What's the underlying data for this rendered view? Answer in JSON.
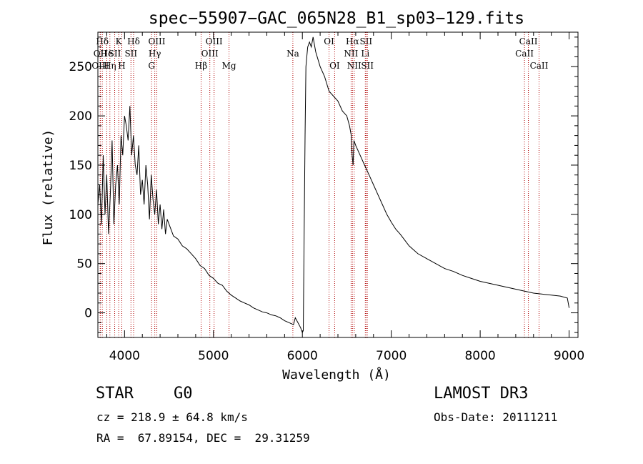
{
  "chart_data": {
    "type": "line",
    "title": "spec−55907−GAC_065N28_B1_sp03−129.fits",
    "xlabel": "Wavelength (Å)",
    "ylabel": "Flux (relative)",
    "xlim": [
      3700,
      9100
    ],
    "ylim": [
      -25,
      285
    ],
    "xticks": [
      4000,
      5000,
      6000,
      7000,
      8000,
      9000
    ],
    "yticks": [
      0,
      50,
      100,
      150,
      200,
      250
    ],
    "series": [
      {
        "name": "flux",
        "x": [
          3700,
          3720,
          3740,
          3760,
          3780,
          3800,
          3820,
          3840,
          3860,
          3880,
          3900,
          3920,
          3940,
          3960,
          3980,
          4000,
          4020,
          4040,
          4060,
          4080,
          4100,
          4120,
          4140,
          4160,
          4180,
          4200,
          4220,
          4240,
          4260,
          4280,
          4300,
          4320,
          4340,
          4360,
          4380,
          4400,
          4420,
          4440,
          4460,
          4480,
          4500,
          4550,
          4600,
          4650,
          4700,
          4750,
          4800,
          4850,
          4900,
          4950,
          5000,
          5050,
          5100,
          5150,
          5200,
          5250,
          5300,
          5350,
          5400,
          5450,
          5500,
          5550,
          5600,
          5650,
          5700,
          5750,
          5800,
          5850,
          5900,
          5920,
          5950,
          5980,
          6000,
          6010,
          6020,
          6030,
          6040,
          6050,
          6060,
          6080,
          6100,
          6120,
          6150,
          6200,
          6250,
          6300,
          6350,
          6400,
          6450,
          6500,
          6530,
          6550,
          6560,
          6570,
          6580,
          6600,
          6650,
          6700,
          6750,
          6800,
          6850,
          6900,
          6950,
          7000,
          7050,
          7100,
          7150,
          7200,
          7300,
          7400,
          7500,
          7600,
          7700,
          7800,
          7900,
          8000,
          8100,
          8200,
          8300,
          8400,
          8500,
          8600,
          8700,
          8800,
          8900,
          8980,
          9000
        ],
        "values": [
          110,
          130,
          90,
          160,
          100,
          140,
          80,
          120,
          175,
          90,
          130,
          150,
          110,
          180,
          160,
          200,
          190,
          175,
          210,
          160,
          180,
          150,
          140,
          170,
          120,
          135,
          110,
          150,
          130,
          95,
          140,
          115,
          100,
          125,
          90,
          110,
          85,
          105,
          80,
          95,
          90,
          78,
          75,
          68,
          65,
          60,
          55,
          48,
          45,
          38,
          35,
          30,
          28,
          22,
          18,
          15,
          12,
          10,
          8,
          5,
          3,
          1,
          0,
          -2,
          -3,
          -5,
          -8,
          -10,
          -12,
          -5,
          -10,
          -15,
          -20,
          -18,
          80,
          180,
          250,
          260,
          270,
          275,
          270,
          280,
          265,
          250,
          240,
          225,
          220,
          215,
          205,
          200,
          190,
          180,
          160,
          150,
          175,
          170,
          160,
          150,
          140,
          130,
          120,
          110,
          100,
          92,
          85,
          80,
          74,
          68,
          60,
          55,
          50,
          45,
          42,
          38,
          35,
          32,
          30,
          28,
          26,
          24,
          22,
          20,
          19,
          18,
          17,
          15,
          5
        ]
      }
    ],
    "line_markers": [
      {
        "label": "Hδ",
        "wavelength": 3750,
        "row": 1
      },
      {
        "label": "OII",
        "wavelength": 3727,
        "row": 2
      },
      {
        "label": "OIII",
        "wavelength": 3727,
        "row": 3
      },
      {
        "label": "He",
        "wavelength": 3800,
        "row": 2
      },
      {
        "label": "Hη",
        "wavelength": 3835,
        "row": 3
      },
      {
        "label": "K",
        "wavelength": 3934,
        "row": 1
      },
      {
        "label": "SII",
        "wavelength": 3889,
        "row": 2
      },
      {
        "label": "H",
        "wavelength": 3969,
        "row": 3
      },
      {
        "label": "Hδ",
        "wavelength": 4102,
        "row": 1
      },
      {
        "label": "SII",
        "wavelength": 4072,
        "row": 2
      },
      {
        "label": "OIII",
        "wavelength": 4363,
        "row": 1
      },
      {
        "label": "Hγ",
        "wavelength": 4340,
        "row": 2
      },
      {
        "label": "G",
        "wavelength": 4304,
        "row": 3
      },
      {
        "label": "OIII",
        "wavelength": 5007,
        "row": 1
      },
      {
        "label": "OIII",
        "wavelength": 4959,
        "row": 2
      },
      {
        "label": "Hβ",
        "wavelength": 4861,
        "row": 3
      },
      {
        "label": "Mg",
        "wavelength": 5175,
        "row": 3
      },
      {
        "label": "Na",
        "wavelength": 5893,
        "row": 2
      },
      {
        "label": "OI",
        "wavelength": 6300,
        "row": 1
      },
      {
        "label": "OI",
        "wavelength": 6363,
        "row": 3
      },
      {
        "label": "Hα",
        "wavelength": 6563,
        "row": 1
      },
      {
        "label": "NII",
        "wavelength": 6548,
        "row": 2
      },
      {
        "label": "NII",
        "wavelength": 6583,
        "row": 3
      },
      {
        "label": "SII",
        "wavelength": 6716,
        "row": 1
      },
      {
        "label": "Li",
        "wavelength": 6708,
        "row": 2
      },
      {
        "label": "SII",
        "wavelength": 6731,
        "row": 3
      },
      {
        "label": "CaII",
        "wavelength": 8542,
        "row": 1
      },
      {
        "label": "CaII",
        "wavelength": 8498,
        "row": 2
      },
      {
        "label": "CaII",
        "wavelength": 8662,
        "row": 3
      }
    ]
  },
  "info": {
    "object_class": "STAR",
    "subclass": "G0",
    "survey": "LAMOST DR3",
    "cz": "cz = 218.9 ± 64.8 km/s",
    "obs_date": "Obs-Date: 20111211",
    "coords": "RA =  67.89154, DEC =  29.31259"
  }
}
